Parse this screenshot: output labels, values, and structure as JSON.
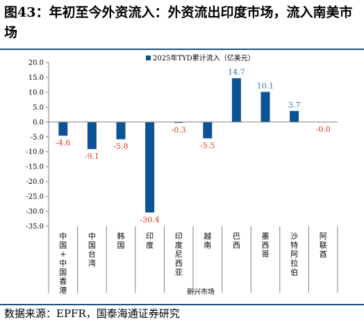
{
  "figure": {
    "title": "图43：年初至今外资流入：外资流出印度市场，流入南美市场",
    "source": "数据来源：EPFR，国泰海通证券研究"
  },
  "chart_data": {
    "type": "bar",
    "categories": [
      "中国+中国香港",
      "中国台湾",
      "韩国",
      "印度",
      "印度尼西亚",
      "越南",
      "巴西",
      "墨西哥",
      "沙特阿拉伯",
      "阿联酋"
    ],
    "values": [
      -4.6,
      -9.1,
      -5.8,
      -30.4,
      -0.3,
      -5.5,
      14.7,
      10.1,
      3.7,
      -0.0
    ],
    "value_labels": [
      "-4.6",
      "-9.1",
      "-5.8",
      "-30.4",
      "-0.3",
      "-5.5",
      "14.7",
      "10.1",
      "3.7",
      "-0.0"
    ],
    "series": [
      {
        "name": "2025年TYD累计流入（亿美元）",
        "values": [
          -4.6,
          -9.1,
          -5.8,
          -30.4,
          -0.3,
          -5.5,
          14.7,
          10.1,
          3.7,
          -0.0
        ]
      }
    ],
    "xlabel": "新兴市场",
    "ylabel": "",
    "ylim": [
      -35,
      20
    ],
    "yticks": [
      "20.0",
      "15.0",
      "10.0",
      "5.0",
      "0.0",
      "-5.0",
      "-10.0",
      "-15.0",
      "-20.0",
      "-25.0",
      "-30.0",
      "-35.0"
    ],
    "legend_position": "top-center",
    "grid": false,
    "colors": {
      "bar": "#0b5394",
      "positive_label": "#2e75b6",
      "negative_label": "#e0341e",
      "axis": "#808080"
    }
  }
}
